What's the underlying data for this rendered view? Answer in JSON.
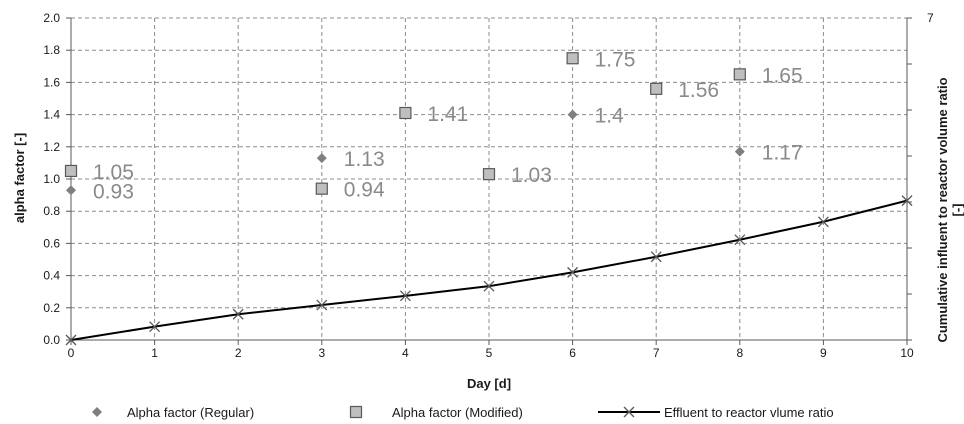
{
  "chart_data": {
    "type": "scatter",
    "xlabel": "Day [d]",
    "ylabel": "alpha factor [-]",
    "y2label_line1": "Cumulative influent to reactor volume ratio",
    "y2label_line2": "[-]",
    "xlim": [
      0,
      10
    ],
    "ylim": [
      0,
      2.0
    ],
    "y2lim": [
      0,
      7
    ],
    "x_ticks": [
      "0",
      "1",
      "2",
      "3",
      "4",
      "5",
      "6",
      "7",
      "8",
      "9",
      "10"
    ],
    "y_ticks": [
      "0.0",
      "0.2",
      "0.4",
      "0.6",
      "0.8",
      "1.0",
      "1.2",
      "1.4",
      "1.6",
      "1.8",
      "2.0"
    ],
    "y2_ticks": [
      "7"
    ],
    "grid": true,
    "legend_position": "bottom",
    "series": [
      {
        "name": "Alpha factor (Regular)",
        "marker": "diamond",
        "color": "#7f7f7f",
        "axis": "left",
        "points": [
          {
            "x": 0,
            "y": 0.93,
            "label": "0.93"
          },
          {
            "x": 3,
            "y": 1.13,
            "label": "1.13"
          },
          {
            "x": 6,
            "y": 1.4,
            "label": "1.4"
          },
          {
            "x": 8,
            "y": 1.17,
            "label": "1.17"
          }
        ]
      },
      {
        "name": "Alpha factor (Modified)",
        "marker": "square",
        "color": "#bfbfbf",
        "axis": "left",
        "points": [
          {
            "x": 0,
            "y": 1.05,
            "label": "1.05"
          },
          {
            "x": 3,
            "y": 0.94,
            "label": "0.94"
          },
          {
            "x": 4,
            "y": 1.41,
            "label": "1.41"
          },
          {
            "x": 5,
            "y": 1.03,
            "label": "1.03"
          },
          {
            "x": 6,
            "y": 1.75,
            "label": "1.75"
          },
          {
            "x": 7,
            "y": 1.56,
            "label": "1.56"
          },
          {
            "x": 8,
            "y": 1.65,
            "label": "1.65"
          }
        ]
      },
      {
        "name": "Effluent to reactor vlume ratio",
        "marker": "x",
        "color": "#000000",
        "axis": "right",
        "type": "line",
        "points": [
          {
            "x": 0,
            "y": 0.0
          },
          {
            "x": 1,
            "y": 0.29
          },
          {
            "x": 2,
            "y": 0.56
          },
          {
            "x": 3,
            "y": 0.76
          },
          {
            "x": 4,
            "y": 0.96
          },
          {
            "x": 5,
            "y": 1.17
          },
          {
            "x": 6,
            "y": 1.47
          },
          {
            "x": 7,
            "y": 1.81
          },
          {
            "x": 8,
            "y": 2.18
          },
          {
            "x": 9,
            "y": 2.57
          },
          {
            "x": 10,
            "y": 3.03
          }
        ]
      }
    ]
  }
}
